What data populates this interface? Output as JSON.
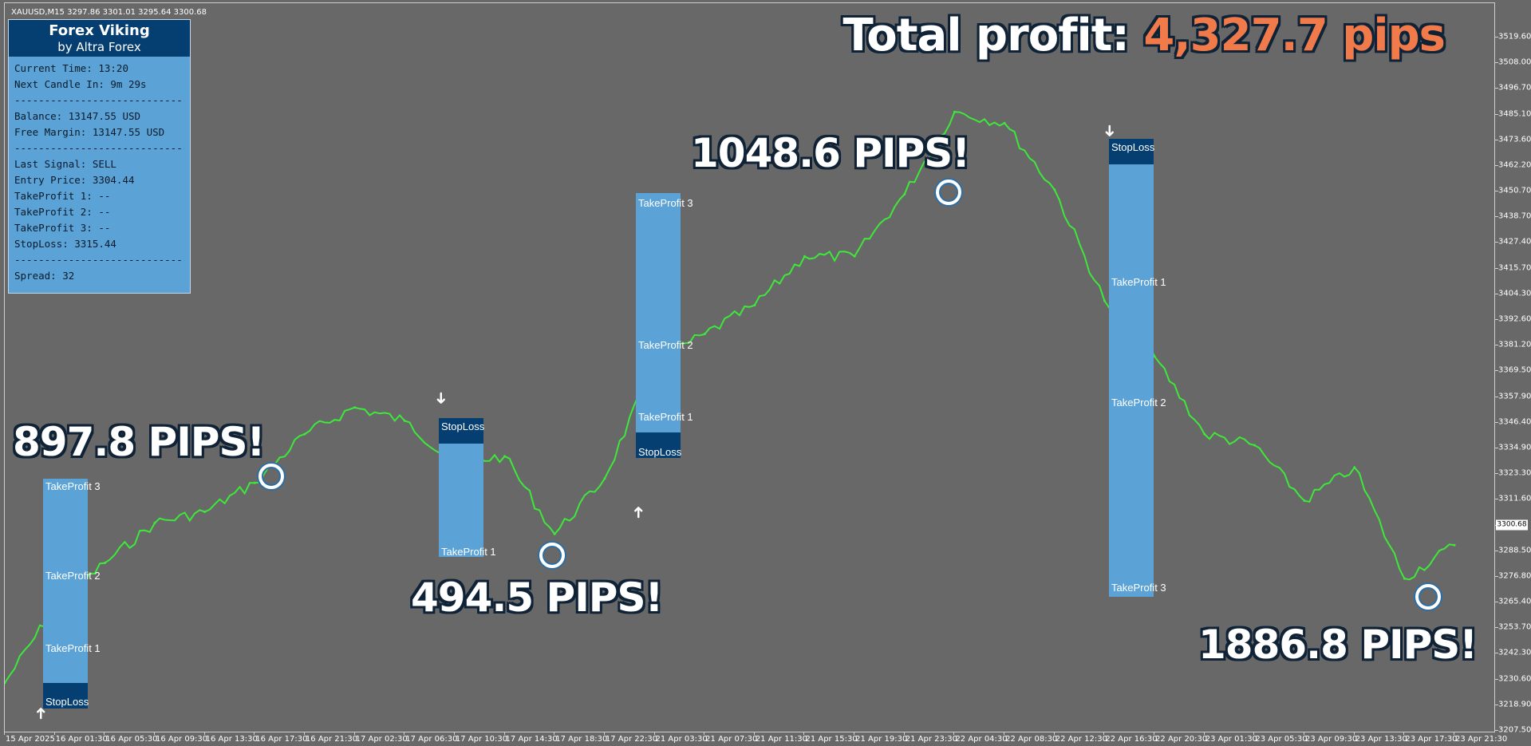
{
  "symbol_line": "XAUUSD,M15  3297.86 3301.01 3295.64 3300.68",
  "panel": {
    "title": "Forex Viking",
    "subtitle": "by Altra Forex",
    "lines": [
      "Current Time: 13:20",
      "Next Candle In: 9m 29s",
      "-----------------------------",
      "Balance: 13147.55 USD",
      "Free Margin: 13147.55 USD",
      "-----------------------------",
      "Last Signal: SELL",
      "Entry Price: 3304.44",
      "TakeProfit 1: --",
      "TakeProfit 2: --",
      "TakeProfit 3: --",
      "StopLoss: 3315.44",
      "-----------------------------",
      "Spread: 32"
    ]
  },
  "headline": {
    "prefix": "Total profit: ",
    "value": "4,327.7 pips"
  },
  "pips_labels": [
    "897.8 PIPS!",
    "494.5 PIPS!",
    "1048.6 PIPS!",
    "1886.8 PIPS!"
  ],
  "trade_labels": {
    "tp1": "TakeProfit 1",
    "tp2": "TakeProfit 2",
    "tp3": "TakeProfit 3",
    "sl": "StopLoss"
  },
  "signals": {
    "buy": "➜",
    "sell": "➜"
  },
  "price_axis": {
    "ticks": [
      "3519.60",
      "3508.00",
      "3496.70",
      "3485.10",
      "3473.60",
      "3462.20",
      "3450.70",
      "3438.70",
      "3427.40",
      "3415.70",
      "3404.30",
      "3392.60",
      "3381.20",
      "3369.50",
      "3357.90",
      "3346.40",
      "3334.90",
      "3323.30",
      "3311.60",
      "3300.68",
      "3288.50",
      "3276.80",
      "3265.40",
      "3253.70",
      "3242.30",
      "3230.60",
      "3218.90",
      "3207.50"
    ],
    "current": "3300.68"
  },
  "time_axis": {
    "ticks": [
      "15 Apr 2025",
      "16 Apr 01:30",
      "16 Apr 05:30",
      "16 Apr 09:30",
      "16 Apr 13:30",
      "16 Apr 17:30",
      "16 Apr 21:30",
      "17 Apr 02:30",
      "17 Apr 06:30",
      "17 Apr 10:30",
      "17 Apr 14:30",
      "17 Apr 18:30",
      "17 Apr 22:30",
      "21 Apr 03:30",
      "21 Apr 07:30",
      "21 Apr 11:30",
      "21 Apr 15:30",
      "21 Apr 19:30",
      "21 Apr 23:30",
      "22 Apr 04:30",
      "22 Apr 08:30",
      "22 Apr 12:30",
      "22 Apr 16:30",
      "22 Apr 20:30",
      "23 Apr 01:30",
      "23 Apr 05:30",
      "23 Apr 09:30",
      "23 Apr 13:30",
      "23 Apr 17:30",
      "23 Apr 21:30"
    ]
  },
  "colors": {
    "background": "#686868",
    "candle": "#3ee83a",
    "tp_zone": "#5ba3d6",
    "sl_zone": "#053e70",
    "accent": "#f07a4a"
  },
  "chart_data": {
    "type": "line",
    "title": "",
    "xlabel": "",
    "ylabel": "",
    "ylim": [
      3207.5,
      3519.6
    ],
    "x": [
      "15 Apr 2025",
      "16 Apr 01:30",
      "16 Apr 05:30",
      "16 Apr 09:30",
      "16 Apr 13:30",
      "16 Apr 17:30",
      "16 Apr 21:30",
      "17 Apr 02:30",
      "17 Apr 06:30",
      "17 Apr 10:30",
      "17 Apr 14:30",
      "17 Apr 18:30",
      "17 Apr 22:30",
      "21 Apr 03:30",
      "21 Apr 07:30",
      "21 Apr 11:30",
      "21 Apr 15:30",
      "21 Apr 19:30",
      "21 Apr 23:30",
      "22 Apr 04:30",
      "22 Apr 08:30",
      "22 Apr 12:30",
      "22 Apr 16:30",
      "22 Apr 20:30",
      "23 Apr 01:30",
      "23 Apr 05:30",
      "23 Apr 09:30",
      "23 Apr 13:30",
      "23 Apr 17:30",
      "23 Apr 21:30"
    ],
    "series": [
      {
        "values": [
          3228,
          3262,
          3282,
          3300,
          3305,
          3318,
          3340,
          3352,
          3346,
          3327,
          3330,
          3295,
          3320,
          3372,
          3385,
          3398,
          3420,
          3420,
          3448,
          3485,
          3480,
          3450,
          3400,
          3375,
          3340,
          3335,
          3310,
          3325,
          3275,
          3290
        ]
      }
    ]
  }
}
